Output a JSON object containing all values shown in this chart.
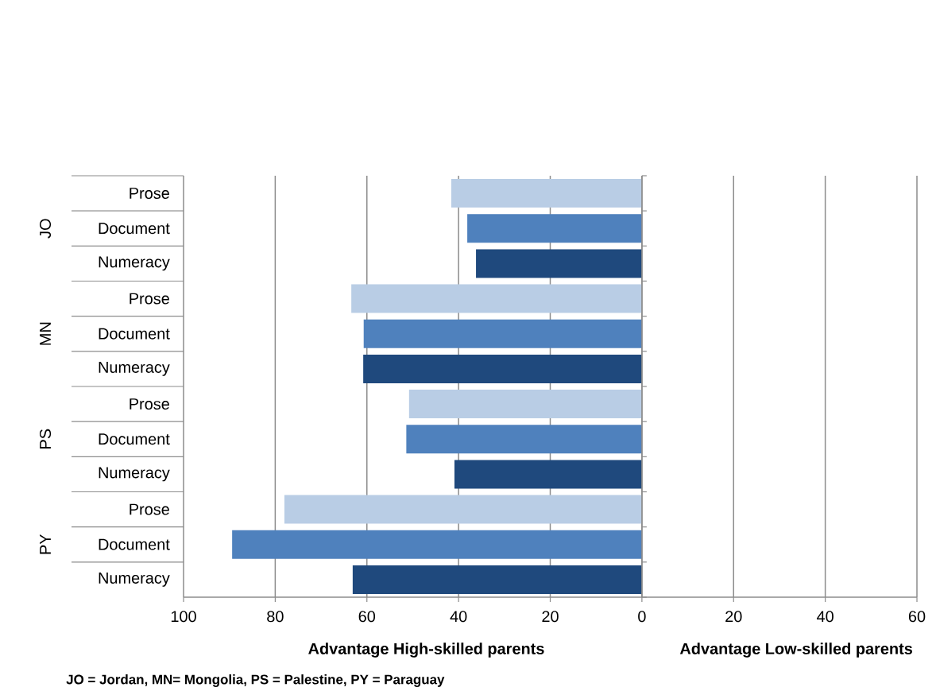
{
  "chart_data": {
    "type": "bar",
    "orientation": "horizontal",
    "categories": [
      "Prose",
      "Document",
      "Numeracy",
      "Prose",
      "Document",
      "Numeracy",
      "Prose",
      "Document",
      "Numeracy",
      "Prose",
      "Document",
      "Numeracy"
    ],
    "values": [
      -41.6,
      -38.1,
      -36.2,
      -63.4,
      -60.7,
      -60.8,
      -50.8,
      -51.4,
      -40.9,
      -78.0,
      -89.4,
      -63.1
    ],
    "colors": [
      "#b9cde5",
      "#4f81bd",
      "#1f497d",
      "#b9cde5",
      "#4f81bd",
      "#1f497d",
      "#b9cde5",
      "#4f81bd",
      "#1f497d",
      "#b9cde5",
      "#4f81bd",
      "#1f497d"
    ],
    "xlim": [
      -100,
      60
    ],
    "xticks": [
      {
        "value": -100,
        "label": "100"
      },
      {
        "value": -80,
        "label": "80"
      },
      {
        "value": -60,
        "label": "60"
      },
      {
        "value": -40,
        "label": "40"
      },
      {
        "value": -20,
        "label": "20"
      },
      0,
      20,
      40,
      60
    ],
    "grid": "x",
    "xlabel": "Advantage High-skilled parents",
    "annotations": [
      "JO",
      "MN",
      "PS",
      "PY",
      "Advantage Low-skilled parents",
      "JO = Jordan, MN= Mongolia, PS = Palestine, PY = Paraguay"
    ]
  }
}
